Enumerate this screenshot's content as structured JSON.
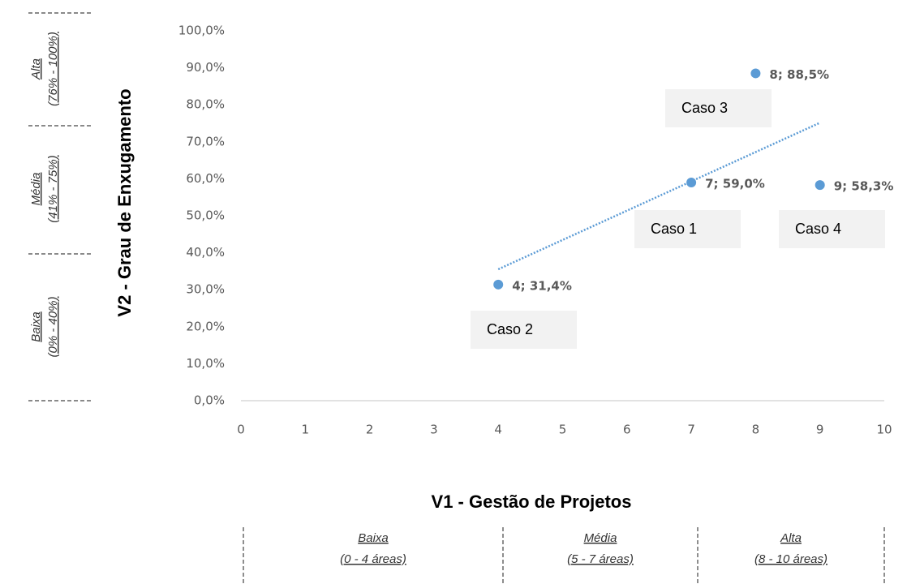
{
  "chart_data": {
    "type": "scatter",
    "x_label": "V1 - Gestão de Projetos",
    "y_label": "V2 - Grau de Enxugamento",
    "x": [
      4,
      7,
      8,
      9
    ],
    "values": [
      31.4,
      59,
      88.5,
      58.3
    ],
    "value_labels": [
      "4; 31,4%",
      "7; 59,0%",
      "8; 88,5%",
      "9; 58,3%"
    ],
    "color": "#5b9bd5",
    "trendline": "linear",
    "annotations": [
      "Caso 2",
      "Caso 1",
      "Caso 3",
      "Caso 4"
    ],
    "xlim": [
      0,
      10
    ],
    "xticks": [
      0,
      1,
      2,
      3,
      4,
      5,
      6,
      7,
      8,
      9,
      10
    ],
    "ylim": [
      0,
      100
    ],
    "yticks": [
      {
        "value": 0,
        "label": "0,0%"
      },
      {
        "value": 10,
        "label": "10,0%"
      },
      {
        "value": 20,
        "label": "20,0%"
      },
      {
        "value": 30,
        "label": "30,0%"
      },
      {
        "value": 40,
        "label": "40,0%"
      },
      {
        "value": 50,
        "label": "50,0%"
      },
      {
        "value": 60,
        "label": "60,0%"
      },
      {
        "value": 70,
        "label": "70,0%"
      },
      {
        "value": 80,
        "label": "80,0%"
      },
      {
        "value": 90,
        "label": "90,0%"
      },
      {
        "value": 100,
        "label": "100,0%"
      }
    ],
    "grid": false,
    "y_bands": [
      {
        "name": "Alta",
        "range": "(76% - 100%)"
      },
      {
        "name": "Média",
        "range": "(41% - 75%)"
      },
      {
        "name": "Baixa",
        "range": "(0% - 40%)"
      }
    ],
    "x_bands": [
      {
        "name": "Baixa",
        "range": "(0 - 4 áreas)"
      },
      {
        "name": "Média",
        "range": "(5 - 7 áreas)"
      },
      {
        "name": "Alta",
        "range": "(8 - 10 áreas)"
      }
    ]
  }
}
